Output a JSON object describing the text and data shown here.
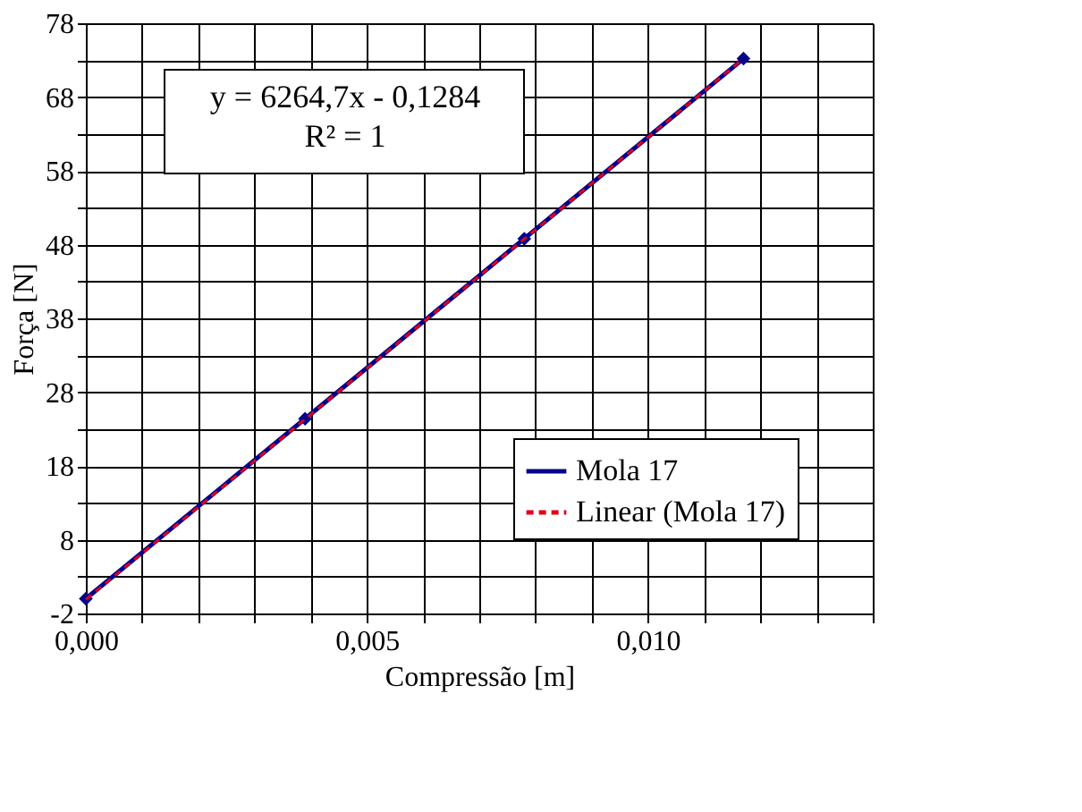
{
  "chart_data": {
    "type": "line",
    "xlabel": "Compressão  [m]",
    "ylabel": "Força [N]",
    "annotations": [
      "y = 6264,7x - 0,1284\nR² = 1"
    ],
    "series": [
      {
        "name": "Mola 17",
        "color": "#00008b",
        "marker": "diamond",
        "line_style": "solid",
        "x": [
          0,
          0.0039,
          0.0078,
          0.0117
        ],
        "values": [
          0,
          24.4,
          48.8,
          73.2
        ]
      },
      {
        "name": "Linear (Mola 17)",
        "color": "#e0001b",
        "marker": "none",
        "line_style": "dashed",
        "x": [
          0,
          0.0117
        ],
        "values": [
          -0.1,
          73.2
        ]
      }
    ],
    "xlim": [
      0,
      0.014
    ],
    "xticks": [
      {
        "value": 0,
        "label": "0,000"
      },
      {
        "value": 0.001,
        "label": null
      },
      {
        "value": 0.002,
        "label": null
      },
      {
        "value": 0.003,
        "label": null
      },
      {
        "value": 0.004,
        "label": null
      },
      {
        "value": 0.005,
        "label": "0,005"
      },
      {
        "value": 0.006,
        "label": null
      },
      {
        "value": 0.007,
        "label": null
      },
      {
        "value": 0.008,
        "label": null
      },
      {
        "value": 0.009,
        "label": null
      },
      {
        "value": 0.01,
        "label": "0,010"
      },
      {
        "value": 0.011,
        "label": null
      },
      {
        "value": 0.012,
        "label": null
      },
      {
        "value": 0.013,
        "label": null
      },
      {
        "value": 0.014,
        "label": null
      }
    ],
    "ylim": [
      -2,
      78
    ],
    "yticks": [
      -2,
      {
        "value": 3,
        "label": null
      },
      8,
      {
        "value": 13,
        "label": null
      },
      18,
      {
        "value": 23,
        "label": null
      },
      28,
      {
        "value": 33,
        "label": null
      },
      38,
      {
        "value": 43,
        "label": null
      },
      48,
      {
        "value": 53,
        "label": null
      },
      58,
      {
        "value": 63,
        "label": null
      },
      68,
      {
        "value": 73,
        "label": null
      },
      78
    ],
    "grid": true,
    "legend": "bottom right"
  }
}
